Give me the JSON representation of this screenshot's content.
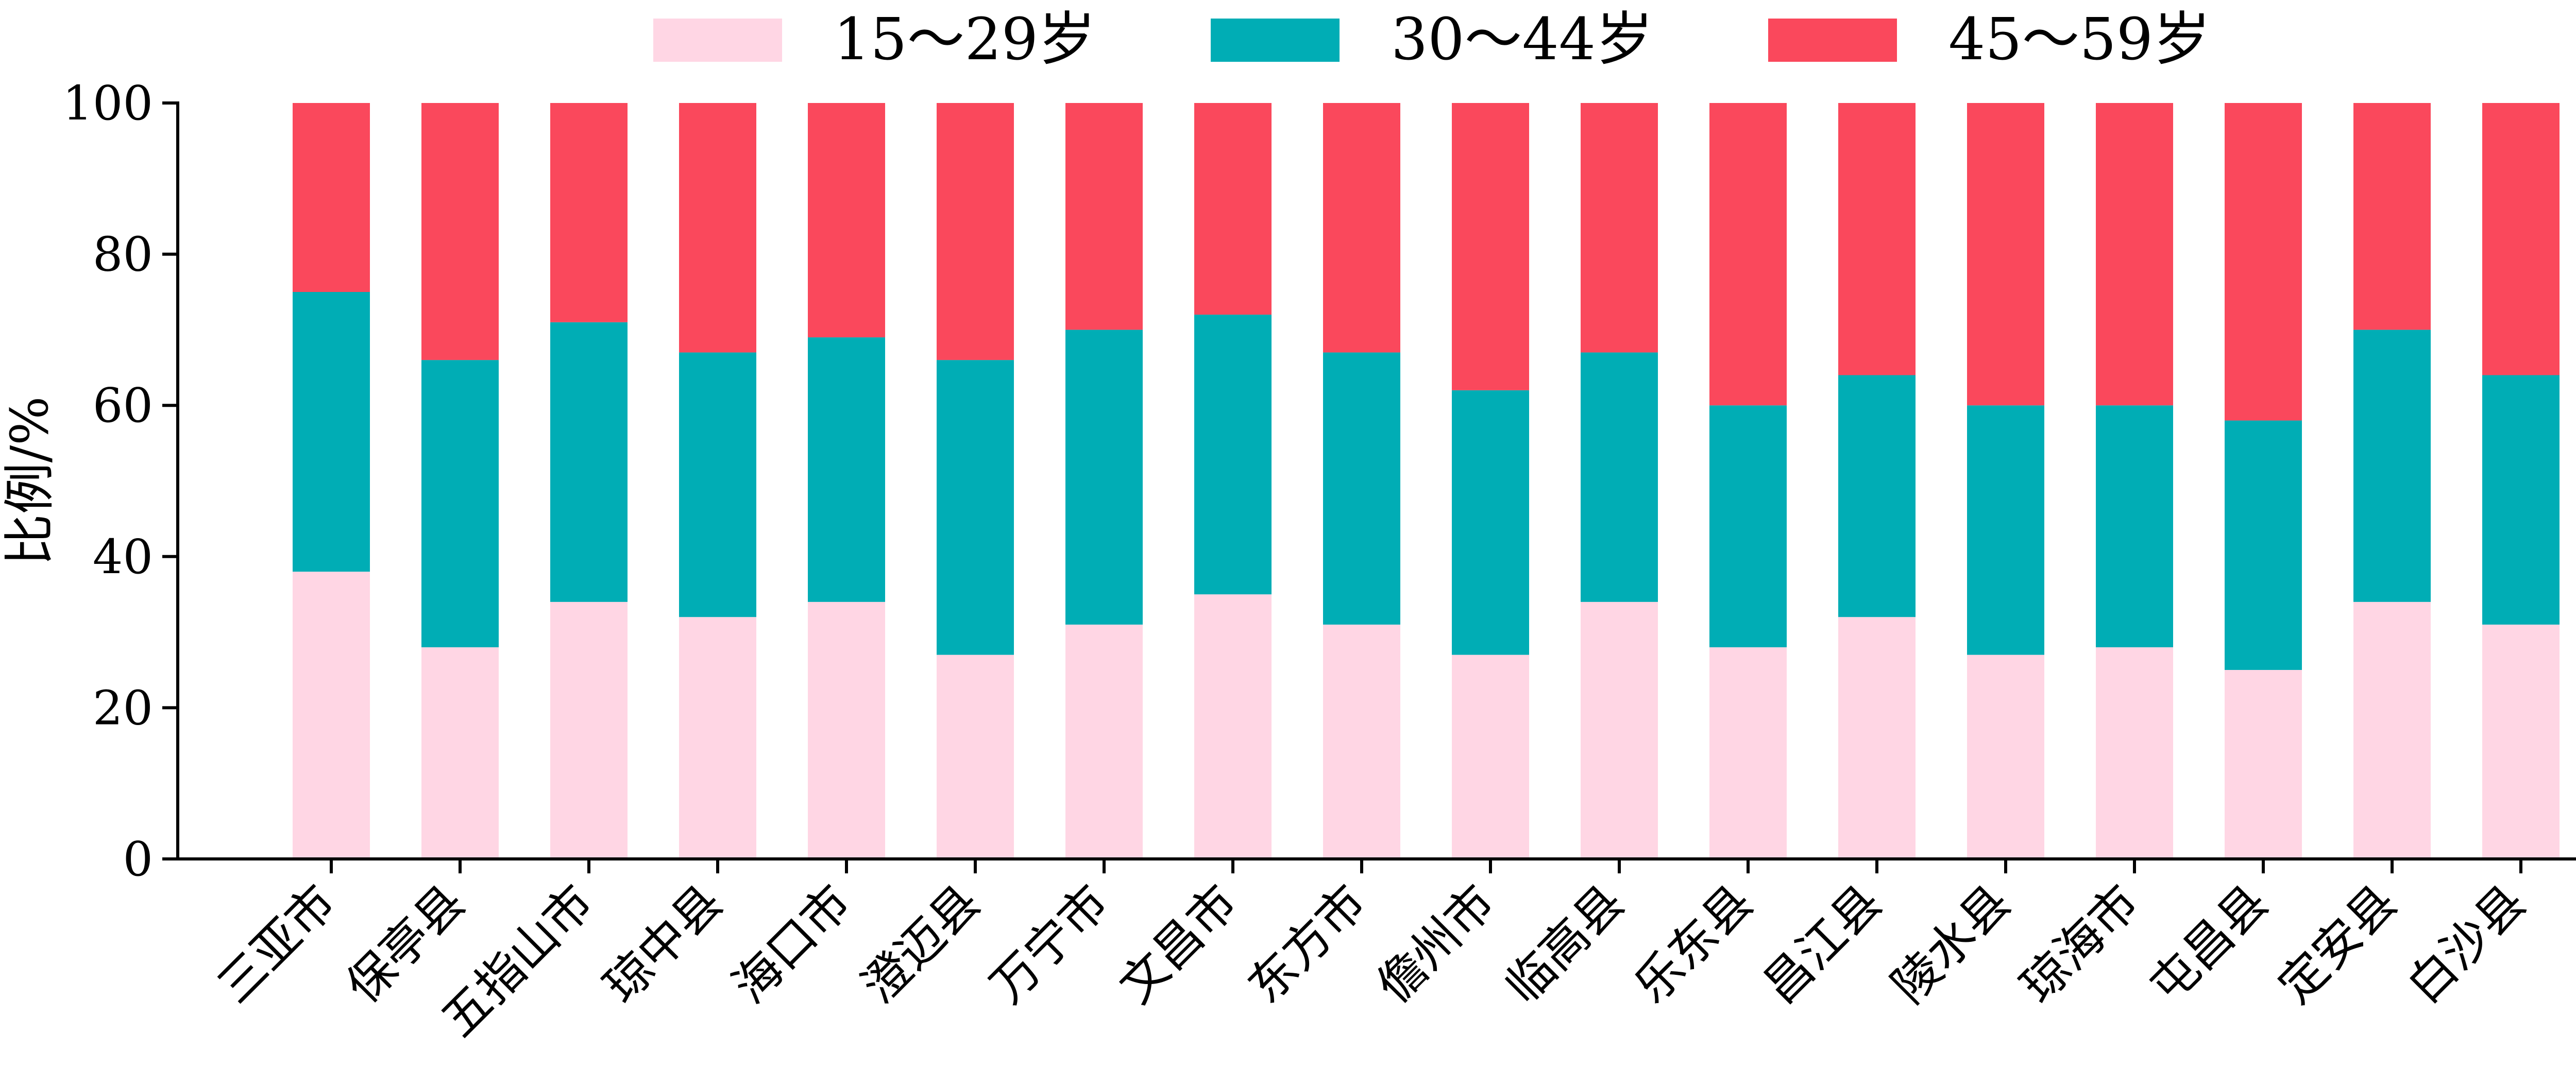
{
  "chart_data": {
    "type": "bar",
    "stacked": true,
    "ylabel": "比例/%",
    "xlabel": "",
    "ylim": [
      0,
      100
    ],
    "yticks": [
      0,
      20,
      40,
      60,
      80,
      100
    ],
    "grid": false,
    "legend_position": "top",
    "categories": [
      "三亚市",
      "保亭县",
      "五指山市",
      "琼中县",
      "海口市",
      "澄迈县",
      "万宁市",
      "文昌市",
      "东方市",
      "儋州市",
      "临高县",
      "乐东县",
      "昌江县",
      "陵水县",
      "琼海市",
      "屯昌县",
      "定安县",
      "白沙县"
    ],
    "series": [
      {
        "name": "15～29岁",
        "color": "#FFD6E4",
        "values": [
          38,
          28,
          34,
          32,
          34,
          27,
          31,
          35,
          31,
          27,
          34,
          28,
          32,
          27,
          28,
          25,
          34,
          31
        ]
      },
      {
        "name": "30～44岁",
        "color": "#00ADB5",
        "values": [
          37,
          38,
          37,
          35,
          35,
          39,
          39,
          37,
          36,
          35,
          33,
          32,
          32,
          33,
          32,
          33,
          36,
          33
        ]
      },
      {
        "name": "45～59岁",
        "color": "#FA485C",
        "values": [
          25,
          34,
          29,
          33,
          31,
          34,
          30,
          28,
          33,
          38,
          33,
          40,
          36,
          40,
          40,
          42,
          30,
          36
        ]
      }
    ]
  }
}
